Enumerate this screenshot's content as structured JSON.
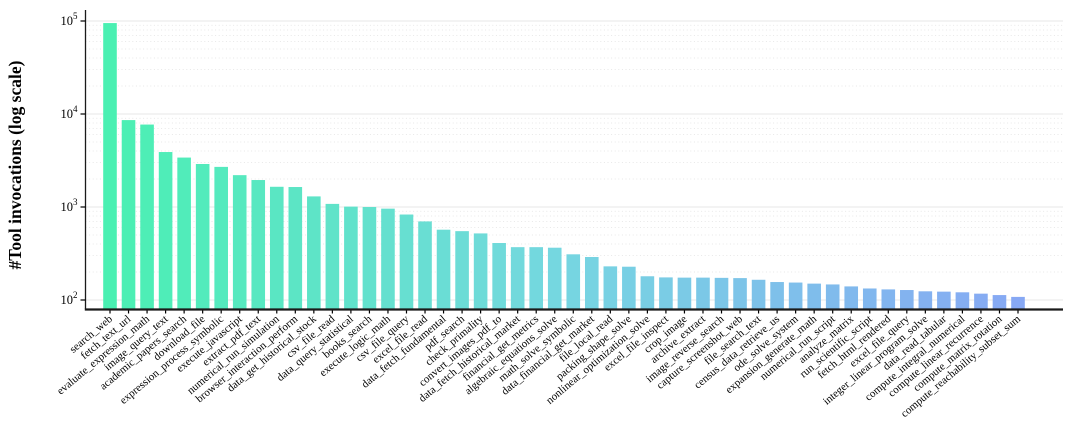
{
  "chart_data": {
    "type": "bar",
    "title": "",
    "xlabel": "",
    "ylabel": "#Tool invocations (log scale)",
    "y_scale": "log",
    "ylim": [
      100,
      100000
    ],
    "y_ticks": [
      "10^2",
      "10^3",
      "10^4",
      "10^5"
    ],
    "grid": "major-solid-horizontal with dotted log minor gridlines",
    "legend": "none",
    "x_tick_rotation_deg": -40,
    "bar_colors": {
      "start": "#4AF0B2",
      "mid": "#76D6E1",
      "end": "#87A8F4"
    },
    "categories": [
      "search_web",
      "fetch_text_url",
      "evaluate_expression_math",
      "image_query_text",
      "academic_papers_search",
      "download_file",
      "expression_process_symbolic",
      "execute_javascript",
      "extract_pdf_text",
      "numerical_run_simulation",
      "browser_interaction_perform",
      "data_get_historical_stock",
      "csv_file_read",
      "data_query_statistical",
      "books_search",
      "execute_logic_math",
      "csv_file_query",
      "excel_file_read",
      "data_fetch_fundamental",
      "pdf_search",
      "check_primality",
      "convert_images_pdf_to",
      "data_fetch_historical_market",
      "financial_get_metrics",
      "algebraic_equations_solve",
      "math_solve_symbolic",
      "data_financial_get_market",
      "file_local_read",
      "packing_shape_solve",
      "nonlinear_optimization_solve",
      "excel_file_inspect",
      "crop_image",
      "archive_extract",
      "image_reverse_search",
      "capture_screenshot_web",
      "file_search_text",
      "census_data_retrieve_us",
      "ode_solve_system",
      "expansion_generate_math",
      "numerical_run_script",
      "analyze_matrix",
      "run_scientific_script",
      "fetch_html_rendered",
      "excel_file_query",
      "integer_linear_program_solve",
      "data_read_tabular",
      "compute_integral_numerical",
      "compute_linear_recurrence",
      "compute_matrix_rotation",
      "compute_reachability_subset_sum"
    ],
    "values": [
      95000,
      8600,
      7700,
      3900,
      3400,
      2900,
      2700,
      2200,
      1950,
      1650,
      1640,
      1300,
      1080,
      1010,
      1000,
      960,
      830,
      700,
      570,
      550,
      520,
      410,
      370,
      370,
      365,
      310,
      290,
      230,
      228,
      180,
      175,
      174,
      174,
      173,
      172,
      165,
      156,
      154,
      150,
      147,
      140,
      133,
      130,
      128,
      124,
      123,
      121,
      117,
      113,
      108
    ]
  }
}
